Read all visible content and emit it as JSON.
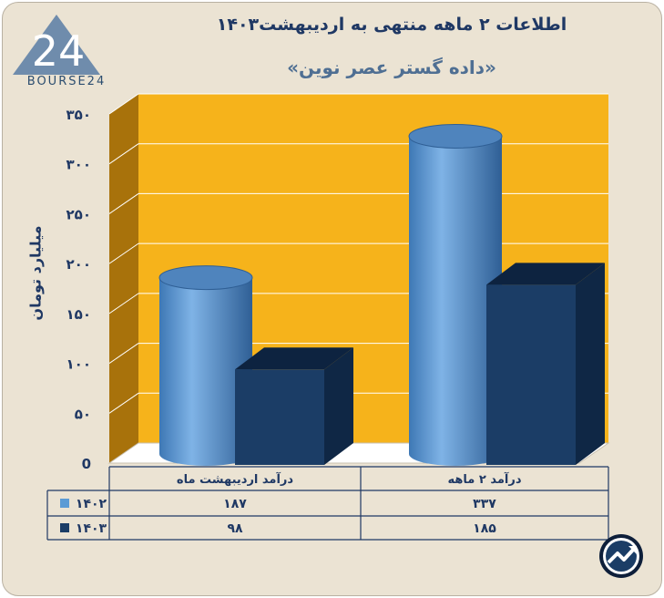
{
  "title": "اطلاعات ۲ ماهه منتهی به اردیبهشت۱۴۰۳",
  "subtitle": "«داده گستر عصر نوین»",
  "logo": {
    "text": "BOURSE24",
    "mark": "24"
  },
  "colors": {
    "background": "#ebe3d3",
    "plot_back": "#f6b31b",
    "plot_side": "#a8720b",
    "series_1402": "#5b9bd5",
    "series_1403": "#1b3d66",
    "text": "#1f3864"
  },
  "chart_data": {
    "type": "bar",
    "title": "اطلاعات ۲ ماهه منتهی به اردیبهشت۱۴۰۳",
    "ylabel": "میلیارد تومان",
    "xlabel": "",
    "ylim": [
      0,
      350
    ],
    "yticks": [
      {
        "value": 0,
        "label": "0"
      },
      {
        "value": 50,
        "label": "۵۰"
      },
      {
        "value": 100,
        "label": "۱۰۰"
      },
      {
        "value": 150,
        "label": "۱۵۰"
      },
      {
        "value": 200,
        "label": "۲۰۰"
      },
      {
        "value": 250,
        "label": "۲۵۰"
      },
      {
        "value": 300,
        "label": "۳۰۰"
      },
      {
        "value": 350,
        "label": "۳۵۰"
      }
    ],
    "grid": true,
    "categories": [
      "درآمد اردیبهشت ماه",
      "درآمد ۲ ماهه"
    ],
    "series": [
      {
        "name": "۱۴۰۲",
        "values": [
          187,
          337
        ],
        "value_labels": [
          "۱۸۷",
          "۳۳۷"
        ],
        "shape": "cylinder",
        "color": "#5b9bd5"
      },
      {
        "name": "۱۴۰۳",
        "values": [
          98,
          185
        ],
        "value_labels": [
          "۹۸",
          "۱۸۵"
        ],
        "shape": "box",
        "color": "#1b3d66"
      }
    ],
    "legend": "data-table-left"
  }
}
